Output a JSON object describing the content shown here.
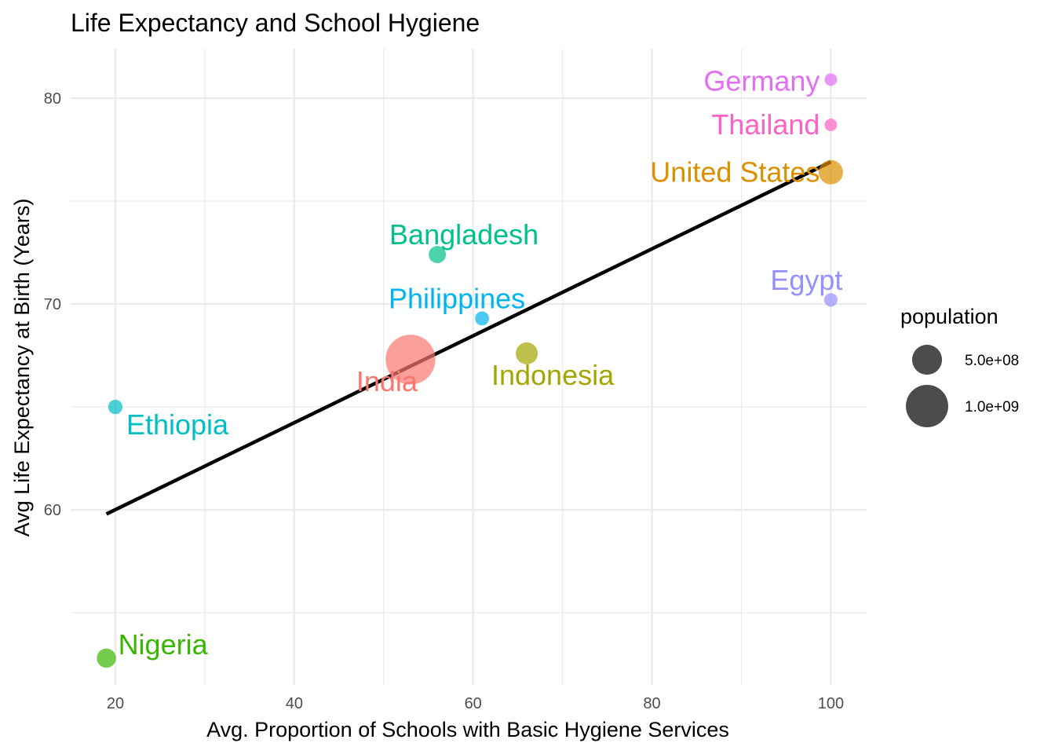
{
  "chart_data": {
    "type": "scatter",
    "title": "Life Expectancy and School Hygiene",
    "xlabel": "Avg. Proportion of Schools with Basic Hygiene Services",
    "ylabel": "Avg Life Expectancy at Birth (Years)",
    "xlim": [
      15,
      104
    ],
    "ylim": [
      51.5,
      82.4
    ],
    "x_ticks": [
      20,
      40,
      60,
      80,
      100
    ],
    "y_ticks": [
      60,
      70,
      80
    ],
    "grid": true,
    "legend_position": "right",
    "size_legend": {
      "title": "population",
      "entries": [
        {
          "label": "5.0e+08",
          "value": 500000000
        },
        {
          "label": "1.0e+09",
          "value": 1000000000
        }
      ]
    },
    "points": [
      {
        "label": "Germany",
        "x": 100,
        "y": 80.9,
        "population": 83000000,
        "color": "#e36ef6"
      },
      {
        "label": "Thailand",
        "x": 100,
        "y": 78.7,
        "population": 70000000,
        "color": "#ff61c3"
      },
      {
        "label": "United States",
        "x": 100,
        "y": 76.4,
        "population": 330000000,
        "color": "#dc8f00"
      },
      {
        "label": "Egypt",
        "x": 100,
        "y": 70.2,
        "population": 100000000,
        "color": "#9590ff"
      },
      {
        "label": "Bangladesh",
        "x": 56,
        "y": 72.4,
        "population": 165000000,
        "color": "#00c08b"
      },
      {
        "label": "Philippines",
        "x": 61,
        "y": 69.3,
        "population": 110000000,
        "color": "#00b4f0"
      },
      {
        "label": "India",
        "x": 53,
        "y": 67.3,
        "population": 1380000000,
        "color": "#f8766d"
      },
      {
        "label": "Indonesia",
        "x": 66,
        "y": 67.6,
        "population": 270000000,
        "color": "#a3a500"
      },
      {
        "label": "Ethiopia",
        "x": 20,
        "y": 65,
        "population": 115000000,
        "color": "#00bfc4"
      },
      {
        "label": "Nigeria",
        "x": 19,
        "y": 52.8,
        "population": 206000000,
        "color": "#39b600"
      }
    ],
    "trend_line": {
      "x1": 19,
      "y1": 59.8,
      "x2": 100,
      "y2": 76.9
    }
  }
}
